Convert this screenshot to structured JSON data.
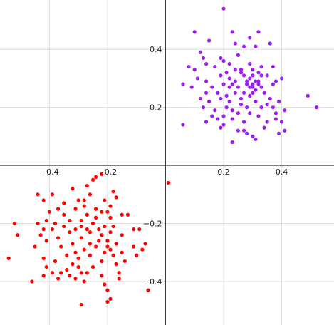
{
  "chart_data": {
    "type": "scatter",
    "title": "",
    "xlabel": "",
    "ylabel": "",
    "xlim": [
      -0.57,
      0.58
    ],
    "ylim": [
      -0.55,
      0.57
    ],
    "grid": true,
    "x_ticks": [
      -0.4,
      -0.2,
      0.2,
      0.4
    ],
    "y_ticks": [
      0.4,
      0.2,
      -0.2,
      -0.4
    ],
    "x_tick_labels": [
      "−0.4",
      "−0.2",
      "0.2",
      "0.4"
    ],
    "y_tick_labels": [
      "0.4",
      "0.2",
      "−0.2",
      "−0.4"
    ],
    "series": [
      {
        "color": "#9b1ff2",
        "points": [
          [
            0.2,
            0.54
          ],
          [
            0.1,
            0.46
          ],
          [
            0.15,
            0.43
          ],
          [
            0.23,
            0.46
          ],
          [
            0.32,
            0.46
          ],
          [
            0.29,
            0.44
          ],
          [
            0.24,
            0.42
          ],
          [
            0.31,
            0.41
          ],
          [
            0.36,
            0.42
          ],
          [
            0.12,
            0.39
          ],
          [
            0.13,
            0.37
          ],
          [
            0.19,
            0.37
          ],
          [
            0.27,
            0.41
          ],
          [
            0.25,
            0.38
          ],
          [
            0.14,
            0.35
          ],
          [
            0.17,
            0.34
          ],
          [
            0.08,
            0.34
          ],
          [
            0.1,
            0.33
          ],
          [
            0.2,
            0.36
          ],
          [
            0.22,
            0.35
          ],
          [
            0.29,
            0.35
          ],
          [
            0.33,
            0.34
          ],
          [
            0.37,
            0.34
          ],
          [
            0.24,
            0.33
          ],
          [
            0.26,
            0.32
          ],
          [
            0.3,
            0.33
          ],
          [
            0.32,
            0.32
          ],
          [
            0.35,
            0.31
          ],
          [
            0.11,
            0.3
          ],
          [
            0.14,
            0.29
          ],
          [
            0.19,
            0.31
          ],
          [
            0.22,
            0.3
          ],
          [
            0.27,
            0.31
          ],
          [
            0.29,
            0.3
          ],
          [
            0.31,
            0.29
          ],
          [
            0.38,
            0.29
          ],
          [
            0.4,
            0.3
          ],
          [
            0.06,
            0.28
          ],
          [
            0.09,
            0.27
          ],
          [
            0.16,
            0.27
          ],
          [
            0.2,
            0.28
          ],
          [
            0.23,
            0.28
          ],
          [
            0.25,
            0.27
          ],
          [
            0.28,
            0.28
          ],
          [
            0.29,
            0.27
          ],
          [
            0.3,
            0.27
          ],
          [
            0.32,
            0.28
          ],
          [
            0.33,
            0.27
          ],
          [
            0.37,
            0.28
          ],
          [
            0.14,
            0.25
          ],
          [
            0.18,
            0.25
          ],
          [
            0.21,
            0.24
          ],
          [
            0.24,
            0.25
          ],
          [
            0.27,
            0.25
          ],
          [
            0.29,
            0.24
          ],
          [
            0.34,
            0.25
          ],
          [
            0.12,
            0.23
          ],
          [
            0.15,
            0.22
          ],
          [
            0.19,
            0.23
          ],
          [
            0.22,
            0.22
          ],
          [
            0.26,
            0.23
          ],
          [
            0.31,
            0.22
          ],
          [
            0.36,
            0.23
          ],
          [
            0.39,
            0.22
          ],
          [
            0.49,
            0.24
          ],
          [
            0.13,
            0.2
          ],
          [
            0.17,
            0.19
          ],
          [
            0.21,
            0.2
          ],
          [
            0.28,
            0.2
          ],
          [
            0.33,
            0.2
          ],
          [
            0.37,
            0.2
          ],
          [
            0.41,
            0.19
          ],
          [
            0.52,
            0.2
          ],
          [
            0.16,
            0.17
          ],
          [
            0.2,
            0.17
          ],
          [
            0.23,
            0.16
          ],
          [
            0.25,
            0.18
          ],
          [
            0.29,
            0.18
          ],
          [
            0.32,
            0.17
          ],
          [
            0.14,
            0.15
          ],
          [
            0.18,
            0.16
          ],
          [
            0.2,
            0.14
          ],
          [
            0.27,
            0.15
          ],
          [
            0.35,
            0.15
          ],
          [
            0.38,
            0.16
          ],
          [
            0.06,
            0.14
          ],
          [
            0.19,
            0.13
          ],
          [
            0.25,
            0.12
          ],
          [
            0.34,
            0.13
          ],
          [
            0.41,
            0.12
          ],
          [
            0.28,
            0.11
          ],
          [
            0.31,
            0.09
          ],
          [
            0.23,
            0.08
          ],
          [
            0.3,
            0.1
          ],
          [
            0.39,
            0.11
          ],
          [
            0.27,
            0.12
          ],
          [
            0.4,
            0.15
          ],
          [
            0.38,
            0.18
          ],
          [
            0.35,
            0.21
          ],
          [
            0.3,
            0.25
          ],
          [
            0.31,
            0.26
          ],
          [
            0.3,
            0.28
          ],
          [
            0.28,
            0.29
          ],
          [
            0.32,
            0.29
          ],
          [
            0.22,
            0.27
          ],
          [
            0.24,
            0.29
          ],
          [
            0.33,
            0.31
          ],
          [
            0.3,
            0.31
          ],
          [
            0.26,
            0.33
          ],
          [
            0.21,
            0.32
          ],
          [
            0.23,
            0.19
          ],
          [
            0.26,
            0.21
          ]
        ]
      },
      {
        "color": "#ff0000",
        "points": [
          [
            0.01,
            -0.06
          ],
          [
            -0.22,
            -0.03
          ],
          [
            -0.24,
            -0.04
          ],
          [
            -0.25,
            -0.05
          ],
          [
            -0.27,
            -0.07
          ],
          [
            -0.18,
            -0.09
          ],
          [
            -0.32,
            -0.08
          ],
          [
            -0.44,
            -0.1
          ],
          [
            -0.39,
            -0.1
          ],
          [
            -0.26,
            -0.1
          ],
          [
            -0.35,
            -0.13
          ],
          [
            -0.21,
            -0.12
          ],
          [
            -0.17,
            -0.11
          ],
          [
            -0.28,
            -0.12
          ],
          [
            -0.42,
            -0.12
          ],
          [
            -0.3,
            -0.12
          ],
          [
            -0.19,
            -0.14
          ],
          [
            -0.24,
            -0.15
          ],
          [
            -0.28,
            -0.14
          ],
          [
            -0.31,
            -0.15
          ],
          [
            -0.37,
            -0.15
          ],
          [
            -0.4,
            -0.16
          ],
          [
            -0.22,
            -0.16
          ],
          [
            -0.13,
            -0.17
          ],
          [
            -0.15,
            -0.17
          ],
          [
            -0.2,
            -0.16
          ],
          [
            -0.35,
            -0.17
          ],
          [
            -0.27,
            -0.17
          ],
          [
            -0.19,
            -0.18
          ],
          [
            -0.24,
            -0.18
          ],
          [
            -0.29,
            -0.19
          ],
          [
            -0.33,
            -0.19
          ],
          [
            -0.41,
            -0.19
          ],
          [
            -0.38,
            -0.2
          ],
          [
            -0.44,
            -0.2
          ],
          [
            -0.52,
            -0.2
          ],
          [
            -0.25,
            -0.2
          ],
          [
            -0.21,
            -0.21
          ],
          [
            -0.18,
            -0.21
          ],
          [
            -0.29,
            -0.21
          ],
          [
            -0.35,
            -0.21
          ],
          [
            -0.23,
            -0.22
          ],
          [
            -0.27,
            -0.22
          ],
          [
            -0.31,
            -0.22
          ],
          [
            -0.39,
            -0.22
          ],
          [
            -0.42,
            -0.22
          ],
          [
            -0.11,
            -0.22
          ],
          [
            -0.09,
            -0.22
          ],
          [
            -0.19,
            -0.23
          ],
          [
            -0.26,
            -0.23
          ],
          [
            -0.33,
            -0.23
          ],
          [
            -0.22,
            -0.24
          ],
          [
            -0.15,
            -0.24
          ],
          [
            -0.29,
            -0.25
          ],
          [
            -0.43,
            -0.24
          ],
          [
            -0.51,
            -0.24
          ],
          [
            -0.37,
            -0.25
          ],
          [
            -0.23,
            -0.26
          ],
          [
            -0.2,
            -0.26
          ],
          [
            -0.26,
            -0.27
          ],
          [
            -0.32,
            -0.27
          ],
          [
            -0.41,
            -0.26
          ],
          [
            -0.17,
            -0.27
          ],
          [
            -0.07,
            -0.27
          ],
          [
            -0.11,
            -0.28
          ],
          [
            -0.2,
            -0.28
          ],
          [
            -0.24,
            -0.28
          ],
          [
            -0.28,
            -0.29
          ],
          [
            -0.36,
            -0.28
          ],
          [
            -0.45,
            -0.28
          ],
          [
            -0.08,
            -0.29
          ],
          [
            -0.19,
            -0.29
          ],
          [
            -0.21,
            -0.3
          ],
          [
            -0.31,
            -0.3
          ],
          [
            -0.15,
            -0.3
          ],
          [
            -0.34,
            -0.31
          ],
          [
            -0.18,
            -0.31
          ],
          [
            -0.26,
            -0.31
          ],
          [
            -0.1,
            -0.31
          ],
          [
            -0.42,
            -0.32
          ],
          [
            -0.3,
            -0.32
          ],
          [
            -0.22,
            -0.33
          ],
          [
            -0.14,
            -0.33
          ],
          [
            -0.54,
            -0.32
          ],
          [
            -0.38,
            -0.33
          ],
          [
            -0.32,
            -0.34
          ],
          [
            -0.17,
            -0.34
          ],
          [
            -0.25,
            -0.35
          ],
          [
            -0.41,
            -0.35
          ],
          [
            -0.3,
            -0.35
          ],
          [
            -0.34,
            -0.36
          ],
          [
            -0.39,
            -0.37
          ],
          [
            -0.36,
            -0.37
          ],
          [
            -0.16,
            -0.37
          ],
          [
            -0.29,
            -0.37
          ],
          [
            -0.27,
            -0.37
          ],
          [
            -0.42,
            -0.38
          ],
          [
            -0.33,
            -0.38
          ],
          [
            -0.22,
            -0.38
          ],
          [
            -0.37,
            -0.39
          ],
          [
            -0.31,
            -0.39
          ],
          [
            -0.16,
            -0.39
          ],
          [
            -0.46,
            -0.4
          ],
          [
            -0.28,
            -0.4
          ],
          [
            -0.21,
            -0.41
          ],
          [
            -0.06,
            -0.43
          ],
          [
            -0.2,
            -0.43
          ],
          [
            -0.19,
            -0.46
          ],
          [
            -0.2,
            -0.47
          ],
          [
            -0.29,
            -0.48
          ]
        ]
      }
    ]
  }
}
